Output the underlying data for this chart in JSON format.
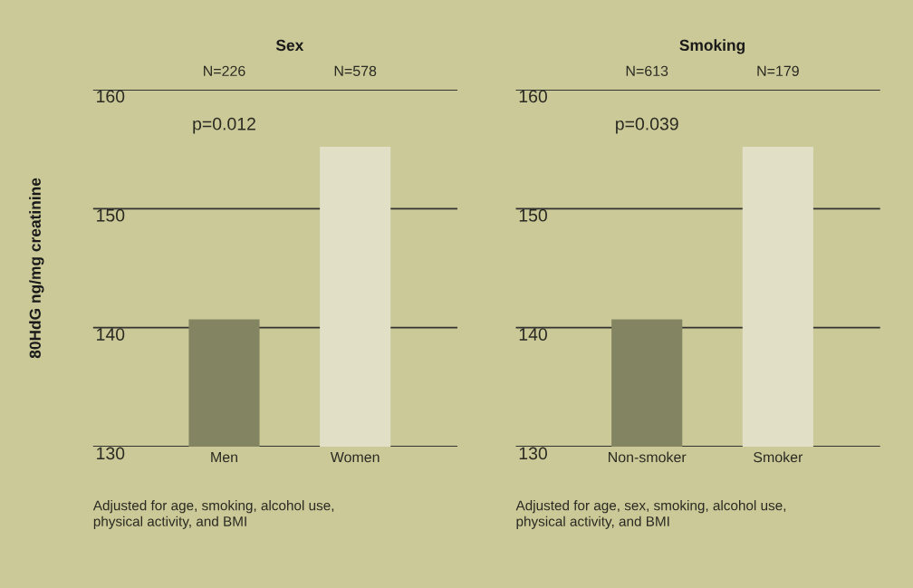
{
  "chart_data": [
    {
      "type": "bar",
      "title": "Sex",
      "ylabel": "80HdG ng/mg creatinine",
      "categories": [
        "Men",
        "Women"
      ],
      "values": [
        140.7,
        155.2
      ],
      "colors": [
        "#838462",
        "#e1dfc6"
      ],
      "ylim": [
        130,
        160
      ],
      "yticks": [
        130,
        140,
        150,
        160
      ],
      "grid": "y",
      "annotations": [
        "N=226",
        "N=578",
        "p=0.012",
        "Adjusted for age, smoking, alcohol use,\nphysical activity, and BMI"
      ]
    },
    {
      "type": "bar",
      "title": "Smoking",
      "categories": [
        "Non-smoker",
        "Smoker"
      ],
      "values": [
        140.7,
        155.2
      ],
      "colors": [
        "#838462",
        "#e1dfc6"
      ],
      "ylim": [
        130,
        160
      ],
      "yticks": [
        130,
        140,
        150,
        160
      ],
      "grid": "y",
      "annotations": [
        "N=613",
        "N=179",
        "p=0.039",
        "Adjusted for age, sex, smoking, alcohol use,\nphysical activity, and BMI"
      ]
    }
  ]
}
